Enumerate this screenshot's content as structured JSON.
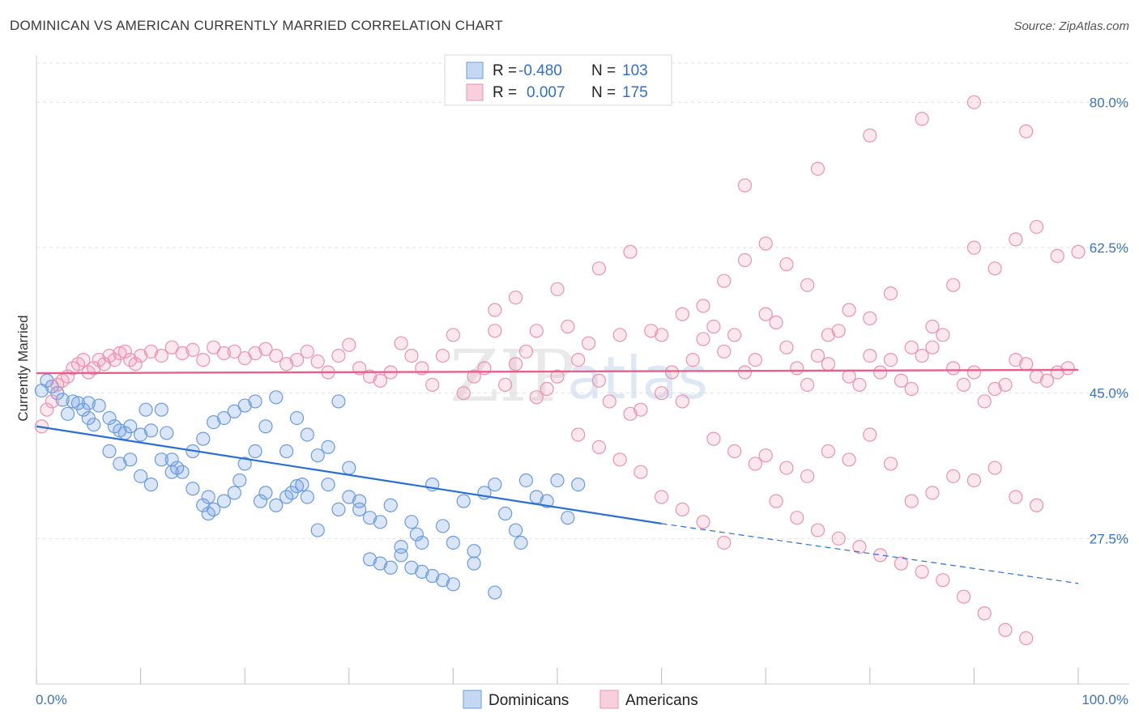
{
  "header": {
    "title": "DOMINICAN VS AMERICAN CURRENTLY MARRIED CORRELATION CHART",
    "source": "Source: ZipAtlas.com"
  },
  "colors": {
    "blue": "#6a9be0",
    "blue_line": "#2a6fd4",
    "pink": "#eb93b0",
    "pink_line": "#e8608a",
    "tick": "#3a72c8"
  },
  "legend": {
    "r_label": "R =",
    "n_label": "N =",
    "rows": [
      {
        "r": "-0.480",
        "n": "103"
      },
      {
        "r": "0.007",
        "n": "175"
      }
    ]
  },
  "bottom_legend": [
    "Dominicans",
    "Americans"
  ],
  "watermark": {
    "zip": "ZIP",
    "atlas": "atlas"
  },
  "chart_data": {
    "type": "scatter",
    "title": "DOMINICAN VS AMERICAN CURRENTLY MARRIED CORRELATION CHART",
    "xlabel": "",
    "ylabel": "Currently Married",
    "xlim": [
      0,
      100
    ],
    "ylim": [
      10,
      85
    ],
    "x_tick_labels": [
      "0.0%",
      "100.0%"
    ],
    "y_ticks": [
      27.5,
      45.0,
      62.5,
      80.0
    ],
    "y_tick_labels": [
      "27.5%",
      "45.0%",
      "62.5%",
      "80.0%"
    ],
    "grid": true,
    "legend_position": "top-center",
    "series": [
      {
        "name": "Dominicans",
        "r": -0.48,
        "n": 103,
        "trend": {
          "x0": 0,
          "y0": 41.0,
          "x1": 60,
          "y1": 29.3,
          "dashed_to_x": 100,
          "dashed_to_y": 22.1
        },
        "points": [
          [
            0.5,
            45.3
          ],
          [
            1,
            46.5
          ],
          [
            1.5,
            45.8
          ],
          [
            2,
            45.0
          ],
          [
            2.5,
            44.2
          ],
          [
            3,
            42.5
          ],
          [
            3.5,
            44.0
          ],
          [
            4,
            43.8
          ],
          [
            4.5,
            43.0
          ],
          [
            5,
            43.8
          ],
          [
            5,
            42.0
          ],
          [
            6,
            43.5
          ],
          [
            5.5,
            41.2
          ],
          [
            7,
            42.0
          ],
          [
            7.5,
            41.0
          ],
          [
            8,
            40.5
          ],
          [
            8.5,
            40.2
          ],
          [
            9,
            41.0
          ],
          [
            10,
            40.0
          ],
          [
            10.5,
            43.0
          ],
          [
            11,
            40.5
          ],
          [
            12,
            43.0
          ],
          [
            12.5,
            40.2
          ],
          [
            13,
            37.0
          ],
          [
            13.5,
            36.0
          ],
          [
            14,
            35.5
          ],
          [
            15,
            33.5
          ],
          [
            16,
            31.5
          ],
          [
            16.5,
            32.5
          ],
          [
            16.5,
            30.5
          ],
          [
            17,
            31.0
          ],
          [
            18,
            32.0
          ],
          [
            19,
            33.0
          ],
          [
            19.5,
            34.5
          ],
          [
            20,
            36.5
          ],
          [
            21,
            38.0
          ],
          [
            21.5,
            32.0
          ],
          [
            22,
            33.0
          ],
          [
            23,
            31.5
          ],
          [
            24,
            32.5
          ],
          [
            24.5,
            33.0
          ],
          [
            25,
            33.8
          ],
          [
            25.5,
            34.0
          ],
          [
            26,
            32.5
          ],
          [
            27,
            28.5
          ],
          [
            28,
            34.0
          ],
          [
            29,
            31.0
          ],
          [
            30,
            32.5
          ],
          [
            31,
            32.0
          ],
          [
            32,
            30.0
          ],
          [
            33,
            29.5
          ],
          [
            34,
            31.5
          ],
          [
            35,
            26.5
          ],
          [
            36,
            29.5
          ],
          [
            36.5,
            28.0
          ],
          [
            37,
            27.0
          ],
          [
            38,
            34.0
          ],
          [
            39,
            29.0
          ],
          [
            40,
            27.0
          ],
          [
            41,
            32.0
          ],
          [
            42,
            26.0
          ],
          [
            43,
            33.0
          ],
          [
            44,
            34.0
          ],
          [
            45,
            30.5
          ],
          [
            46,
            28.5
          ],
          [
            46.5,
            27.0
          ],
          [
            47,
            34.5
          ],
          [
            48,
            32.5
          ],
          [
            49,
            32.0
          ],
          [
            50,
            34.5
          ],
          [
            51,
            30.0
          ],
          [
            52,
            34.0
          ],
          [
            7,
            38.0
          ],
          [
            8,
            36.5
          ],
          [
            9,
            37.0
          ],
          [
            10,
            35.0
          ],
          [
            11,
            34.0
          ],
          [
            12,
            37.0
          ],
          [
            13,
            35.5
          ],
          [
            15,
            38.0
          ],
          [
            16,
            39.5
          ],
          [
            17,
            41.5
          ],
          [
            18,
            42.0
          ],
          [
            19,
            42.8
          ],
          [
            20,
            43.5
          ],
          [
            21,
            44.0
          ],
          [
            22,
            41.0
          ],
          [
            23,
            44.5
          ],
          [
            24,
            38.0
          ],
          [
            25,
            42.0
          ],
          [
            26,
            40.0
          ],
          [
            27,
            37.5
          ],
          [
            28,
            38.5
          ],
          [
            29,
            44.0
          ],
          [
            30,
            36.0
          ],
          [
            31,
            31.0
          ],
          [
            32,
            25.0
          ],
          [
            33,
            24.5
          ],
          [
            34,
            24.0
          ],
          [
            35,
            25.5
          ],
          [
            36,
            24.0
          ],
          [
            37,
            23.5
          ],
          [
            38,
            23.0
          ],
          [
            39,
            22.5
          ],
          [
            40,
            22.0
          ],
          [
            42,
            24.5
          ],
          [
            44,
            21.0
          ]
        ],
        "_note_": "approximate readings"
      },
      {
        "name": "Americans",
        "r": 0.007,
        "n": 175,
        "trend": {
          "x0": 0,
          "y0": 47.4,
          "x1": 100,
          "y1": 47.8
        },
        "points": [
          [
            0.5,
            41.0
          ],
          [
            1,
            43.0
          ],
          [
            1.5,
            44.0
          ],
          [
            2,
            46.0
          ],
          [
            2.5,
            46.5
          ],
          [
            3,
            47.0
          ],
          [
            3.5,
            48.0
          ],
          [
            4,
            48.5
          ],
          [
            4.5,
            49.0
          ],
          [
            5,
            47.5
          ],
          [
            5.5,
            48.0
          ],
          [
            6,
            49.0
          ],
          [
            6.5,
            48.5
          ],
          [
            7,
            49.5
          ],
          [
            7.5,
            49.0
          ],
          [
            8,
            49.8
          ],
          [
            8.5,
            50.0
          ],
          [
            9,
            49.0
          ],
          [
            9.5,
            48.5
          ],
          [
            10,
            49.5
          ],
          [
            11,
            50.0
          ],
          [
            12,
            49.5
          ],
          [
            13,
            50.5
          ],
          [
            14,
            49.8
          ],
          [
            15,
            50.2
          ],
          [
            16,
            49.0
          ],
          [
            17,
            50.5
          ],
          [
            18,
            49.8
          ],
          [
            19,
            50.0
          ],
          [
            20,
            49.2
          ],
          [
            21,
            49.8
          ],
          [
            22,
            50.3
          ],
          [
            23,
            49.5
          ],
          [
            24,
            48.5
          ],
          [
            25,
            49.0
          ],
          [
            26,
            50.0
          ],
          [
            27,
            48.8
          ],
          [
            28,
            47.5
          ],
          [
            29,
            49.5
          ],
          [
            30,
            50.8
          ],
          [
            31,
            48.0
          ],
          [
            32,
            47.0
          ],
          [
            33,
            46.5
          ],
          [
            34,
            47.5
          ],
          [
            35,
            51.0
          ],
          [
            36,
            49.5
          ],
          [
            37,
            48.0
          ],
          [
            38,
            46.0
          ],
          [
            39,
            49.5
          ],
          [
            40,
            52.0
          ],
          [
            41,
            45.0
          ],
          [
            42,
            47.0
          ],
          [
            43,
            48.0
          ],
          [
            44,
            52.5
          ],
          [
            45,
            46.0
          ],
          [
            46,
            48.5
          ],
          [
            47,
            50.0
          ],
          [
            48,
            44.5
          ],
          [
            49,
            45.5
          ],
          [
            50,
            47.0
          ],
          [
            51,
            53.0
          ],
          [
            52,
            49.0
          ],
          [
            53,
            51.0
          ],
          [
            54,
            46.5
          ],
          [
            55,
            44.0
          ],
          [
            56,
            52.0
          ],
          [
            57,
            42.5
          ],
          [
            58,
            43.0
          ],
          [
            59,
            52.5
          ],
          [
            60,
            45.0
          ],
          [
            61,
            47.5
          ],
          [
            62,
            44.0
          ],
          [
            63,
            49.0
          ],
          [
            64,
            51.5
          ],
          [
            65,
            53.0
          ],
          [
            66,
            50.0
          ],
          [
            67,
            52.0
          ],
          [
            68,
            47.5
          ],
          [
            69,
            49.0
          ],
          [
            70,
            54.5
          ],
          [
            71,
            53.5
          ],
          [
            72,
            50.5
          ],
          [
            73,
            48.0
          ],
          [
            74,
            46.0
          ],
          [
            75,
            49.5
          ],
          [
            76,
            48.5
          ],
          [
            77,
            52.5
          ],
          [
            78,
            47.0
          ],
          [
            79,
            46.0
          ],
          [
            80,
            49.5
          ],
          [
            81,
            47.5
          ],
          [
            82,
            49.0
          ],
          [
            83,
            46.5
          ],
          [
            84,
            45.5
          ],
          [
            85,
            49.5
          ],
          [
            86,
            50.5
          ],
          [
            87,
            52.0
          ],
          [
            88,
            48.0
          ],
          [
            89,
            46.0
          ],
          [
            90,
            47.5
          ],
          [
            91,
            44.0
          ],
          [
            92,
            45.5
          ],
          [
            93,
            46.0
          ],
          [
            94,
            49.0
          ],
          [
            95,
            48.5
          ],
          [
            96,
            47.0
          ],
          [
            97,
            46.5
          ],
          [
            98,
            47.5
          ],
          [
            99,
            48.0
          ],
          [
            44,
            55.0
          ],
          [
            46,
            56.5
          ],
          [
            48,
            52.5
          ],
          [
            50,
            57.5
          ],
          [
            54,
            60.0
          ],
          [
            57,
            62.0
          ],
          [
            60,
            52.0
          ],
          [
            62,
            54.5
          ],
          [
            64,
            55.5
          ],
          [
            66,
            58.5
          ],
          [
            68,
            61.0
          ],
          [
            70,
            63.0
          ],
          [
            72,
            60.5
          ],
          [
            74,
            58.0
          ],
          [
            76,
            52.0
          ],
          [
            78,
            55.0
          ],
          [
            80,
            54.0
          ],
          [
            82,
            57.0
          ],
          [
            84,
            50.5
          ],
          [
            86,
            53.0
          ],
          [
            88,
            58.0
          ],
          [
            90,
            62.5
          ],
          [
            92,
            60.0
          ],
          [
            94,
            63.5
          ],
          [
            96,
            65.0
          ],
          [
            98,
            61.5
          ],
          [
            100,
            62.0
          ],
          [
            70,
            37.5
          ],
          [
            72,
            36.0
          ],
          [
            74,
            35.0
          ],
          [
            76,
            38.0
          ],
          [
            78,
            37.0
          ],
          [
            80,
            40.0
          ],
          [
            82,
            36.5
          ],
          [
            84,
            32.0
          ],
          [
            86,
            33.0
          ],
          [
            88,
            35.0
          ],
          [
            90,
            34.5
          ],
          [
            92,
            36.0
          ],
          [
            94,
            32.5
          ],
          [
            96,
            31.5
          ],
          [
            65,
            39.5
          ],
          [
            67,
            38.0
          ],
          [
            69,
            36.5
          ],
          [
            71,
            32.0
          ],
          [
            73,
            30.0
          ],
          [
            60,
            32.5
          ],
          [
            62,
            31.0
          ],
          [
            64,
            29.5
          ],
          [
            66,
            27.0
          ],
          [
            52,
            40.0
          ],
          [
            54,
            38.5
          ],
          [
            56,
            37.0
          ],
          [
            58,
            35.5
          ],
          [
            75,
            28.5
          ],
          [
            77,
            27.5
          ],
          [
            79,
            26.5
          ],
          [
            81,
            25.5
          ],
          [
            83,
            24.5
          ],
          [
            85,
            23.5
          ],
          [
            87,
            22.5
          ],
          [
            89,
            20.5
          ],
          [
            91,
            18.5
          ],
          [
            93,
            16.5
          ],
          [
            95,
            15.5
          ],
          [
            68,
            70.0
          ],
          [
            75,
            72.0
          ],
          [
            80,
            76.0
          ],
          [
            85,
            78.0
          ],
          [
            90,
            80.0
          ],
          [
            95,
            76.5
          ]
        ],
        "_note_": "approximate readings"
      }
    ]
  }
}
